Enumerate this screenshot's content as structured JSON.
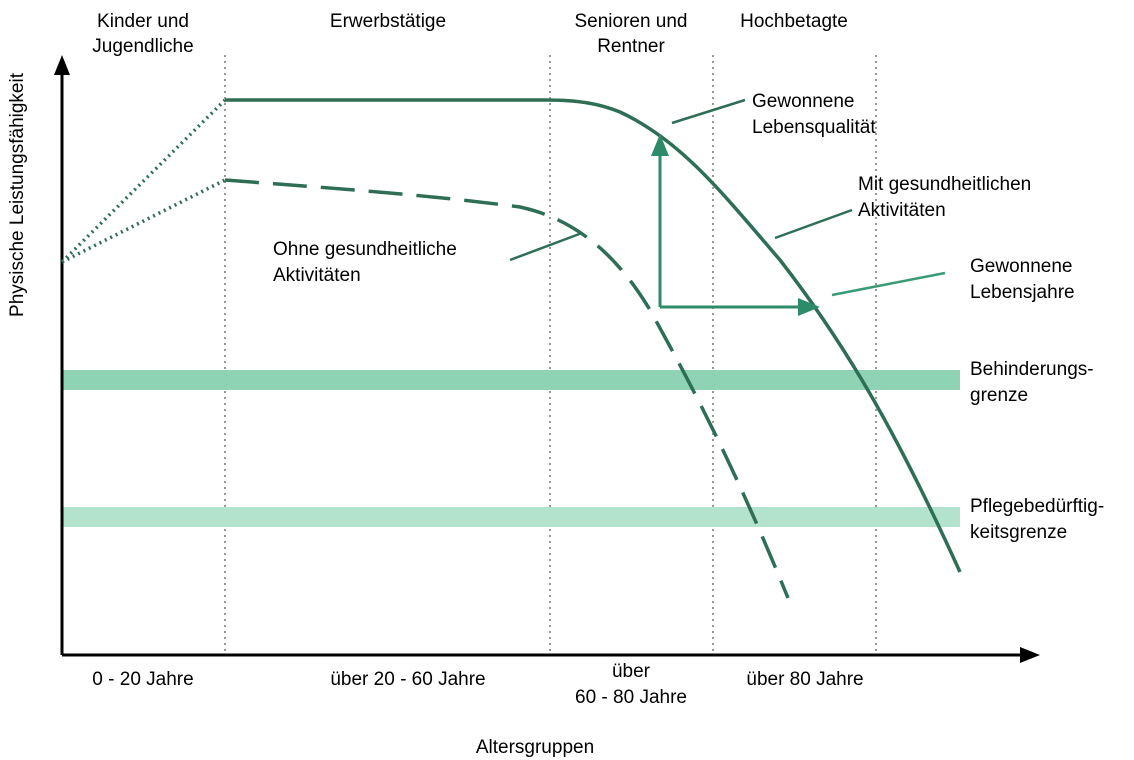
{
  "title_columns": [
    [
      "Kinder und",
      "Jugendliche"
    ],
    [
      "Erwerbstätige"
    ],
    [
      "Senioren und",
      "Rentner"
    ],
    [
      "Hochbetagte"
    ]
  ],
  "age_groups": [
    [
      "0 - 20 Jahre"
    ],
    [
      "über 20 - 60 Jahre"
    ],
    [
      "über",
      "60 - 80 Jahre"
    ],
    [
      "über 80 Jahre"
    ]
  ],
  "x_axis_label": "Altersgruppen",
  "y_axis_label": "Physische Leistungsfähigkeit",
  "annotations": {
    "quality": [
      "Gewonnene",
      "Lebensqualität"
    ],
    "with": [
      "Mit gesundheitlichen",
      "Aktivitäten"
    ],
    "years": [
      "Gewonnene",
      "Lebensjahre"
    ],
    "without": [
      "Ohne gesundheitliche",
      "Aktivitäten"
    ],
    "disability": [
      "Behinderungs-",
      "grenze"
    ],
    "care": [
      "Pflegebedürftig-",
      "keitsgrenze"
    ]
  }
}
